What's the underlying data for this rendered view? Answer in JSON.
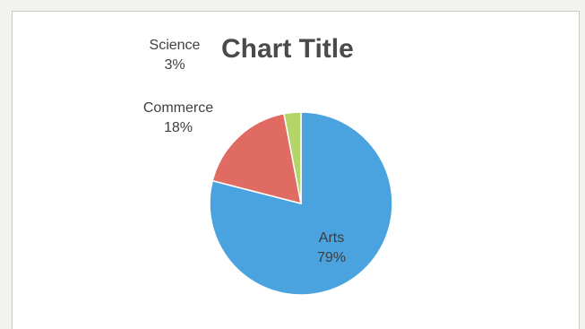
{
  "chart_data": {
    "type": "pie",
    "title": "Chart Title",
    "slices": [
      {
        "label": "Arts",
        "value": 79,
        "value_label": "79%",
        "color": "#4aa3df"
      },
      {
        "label": "Commerce",
        "value": 18,
        "value_label": "18%",
        "color": "#e06b62"
      },
      {
        "label": "Science",
        "value": 3,
        "value_label": "3%",
        "color": "#b3d56a"
      }
    ],
    "legend": "none",
    "data_labels": "category-and-percent"
  }
}
